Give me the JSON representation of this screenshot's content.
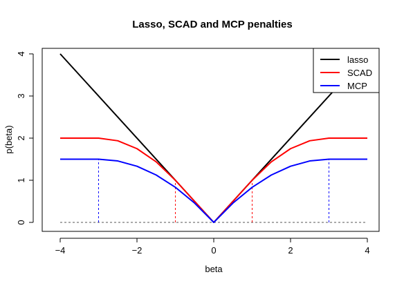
{
  "chart_data": {
    "type": "line",
    "title": "Lasso, SCAD and MCP penalties",
    "xlabel": "beta",
    "ylabel": "p(beta)",
    "xlim": [
      -4,
      4
    ],
    "ylim": [
      0,
      4
    ],
    "x_ticks": [
      -4,
      -2,
      0,
      2,
      4
    ],
    "y_ticks": [
      0,
      1,
      2,
      3,
      4
    ],
    "x_tick_labels": [
      "−4",
      "−2",
      "0",
      "2",
      "4"
    ],
    "y_tick_labels": [
      "0",
      "1",
      "2",
      "3",
      "4"
    ],
    "grid": false,
    "legend_position": "top-right",
    "parameters": {
      "lambda": 1,
      "a": 3,
      "gamma": 3
    },
    "series": [
      {
        "name": "lasso",
        "color": "#000000",
        "x": [
          -4,
          0,
          4
        ],
        "y": [
          4,
          0,
          4
        ]
      },
      {
        "name": "SCAD",
        "color": "#ff0000",
        "x": [
          -4,
          -3,
          -2.5,
          -2,
          -1.5,
          -1,
          0,
          1,
          1.5,
          2,
          2.5,
          3,
          4
        ],
        "y": [
          2,
          2,
          1.9375,
          1.75,
          1.4375,
          1,
          0,
          1,
          1.4375,
          1.75,
          1.9375,
          2,
          2
        ]
      },
      {
        "name": "MCP",
        "color": "#0000ff",
        "x": [
          -4,
          -3,
          -2.5,
          -2,
          -1.5,
          -1,
          -0.5,
          0,
          0.5,
          1,
          1.5,
          2,
          2.5,
          3,
          4
        ],
        "y": [
          1.5,
          1.5,
          1.4583,
          1.3333,
          1.125,
          0.8333,
          0.4583,
          0,
          0.4583,
          0.8333,
          1.125,
          1.3333,
          1.4583,
          1.5,
          1.5
        ]
      }
    ],
    "reference_lines": [
      {
        "kind": "horizontal",
        "y": 0,
        "x_from": -4,
        "x_to": 4,
        "color": "#555555"
      },
      {
        "kind": "vertical",
        "x": -3,
        "y_to": 1.5,
        "color": "#0000ff"
      },
      {
        "kind": "vertical",
        "x": 3,
        "y_to": 1.5,
        "color": "#0000ff"
      },
      {
        "kind": "vertical",
        "x": -1,
        "y_to": 1,
        "color": "#ff0000"
      },
      {
        "kind": "vertical",
        "x": 1,
        "y_to": 1,
        "color": "#ff0000"
      }
    ]
  }
}
